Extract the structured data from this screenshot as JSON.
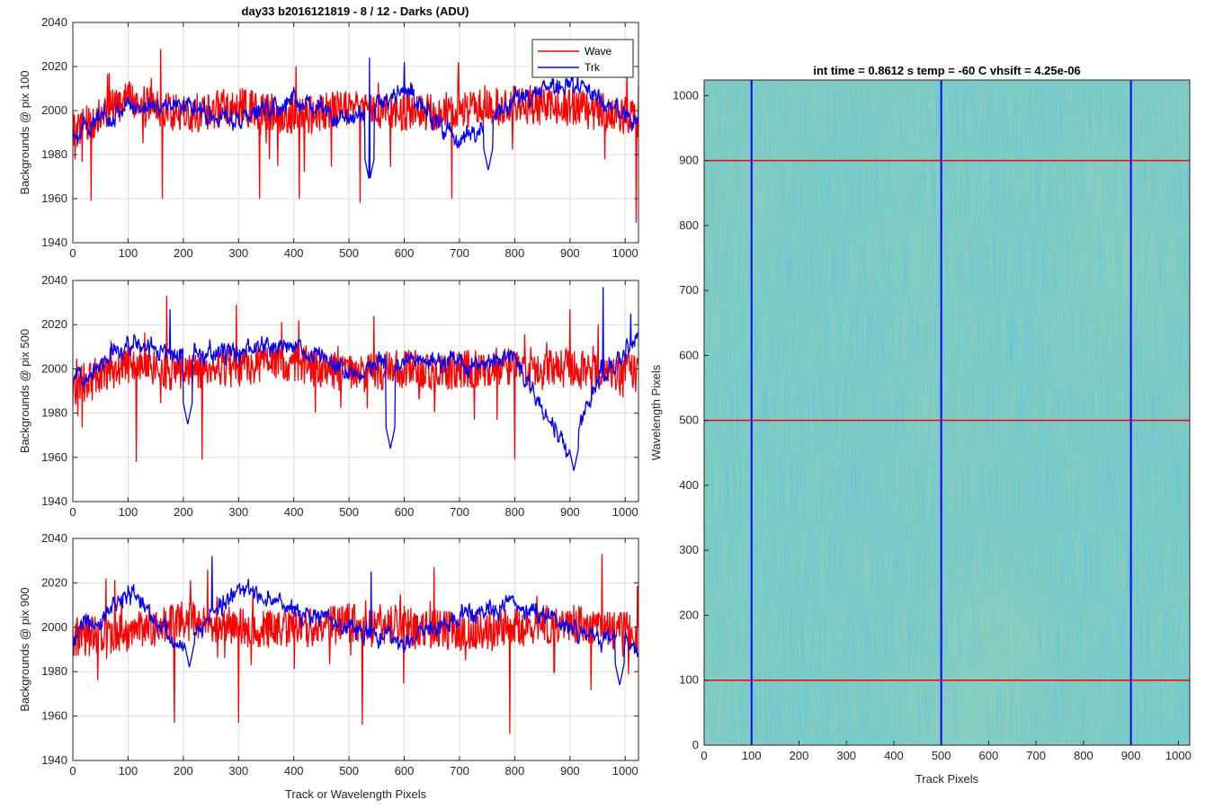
{
  "figure_title": "day33 b2016121819 - 8 / 12 - Darks (ADU)",
  "heatmap_title": "int time = 0.8612 s    temp = -60 C    vhsift = 4.25e-06",
  "colors": {
    "wave": "#ff0000",
    "trk": "#0000ff",
    "grid": "#dcdcdc",
    "axis": "#262626"
  },
  "chart_data": [
    {
      "type": "line",
      "ylabel": "Backgrounds @ pix 100",
      "xlabel": "",
      "xlim": [
        0,
        1024
      ],
      "ylim": [
        1940,
        2040
      ],
      "xticks": [
        "0",
        "100",
        "200",
        "300",
        "400",
        "500",
        "600",
        "700",
        "800",
        "900",
        "1000"
      ],
      "yticks": [
        "1940",
        "1960",
        "1980",
        "2000",
        "2020",
        "2040"
      ],
      "grid": true,
      "legend": {
        "position": "top-right",
        "entries": [
          "Wave",
          "Trk"
        ]
      },
      "series": [
        {
          "name": "Wave",
          "mean": 2000,
          "amp": 9,
          "x_samples": [
            0,
            100,
            200,
            300,
            400,
            500,
            600,
            700,
            800,
            900,
            1024
          ],
          "y_samples": [
            1990,
            2005,
            1998,
            2002,
            1997,
            2001,
            1999,
            2000,
            2003,
            2002,
            1996
          ],
          "min_points": [
            [
              33,
              1959
            ],
            [
              162,
              1960
            ],
            [
              338,
              1960
            ],
            [
              410,
              1960
            ],
            [
              520,
              1958
            ],
            [
              686,
              1960
            ],
            [
              1020,
              1949
            ]
          ],
          "max_points": [
            [
              159,
              2028
            ],
            [
              404,
              2020
            ],
            [
              600,
              2020
            ],
            [
              698,
              2022
            ],
            [
              1003,
              2018
            ]
          ]
        },
        {
          "name": "Trk",
          "mean": 2000,
          "amp": 6,
          "x_samples": [
            0,
            100,
            200,
            300,
            400,
            500,
            600,
            700,
            800,
            900,
            1024
          ],
          "y_samples": [
            1990,
            2002,
            2003,
            1995,
            2005,
            1995,
            2010,
            1985,
            2005,
            2012,
            1995
          ],
          "min_points": [
            [
              537,
              1968
            ],
            [
              752,
              1973
            ]
          ],
          "max_points": [
            [
              537,
              2024
            ],
            [
              600,
              2022
            ],
            [
              914,
              2018
            ]
          ]
        }
      ]
    },
    {
      "type": "line",
      "ylabel": "Backgrounds @ pix 500",
      "xlabel": "",
      "xlim": [
        0,
        1024
      ],
      "ylim": [
        1940,
        2040
      ],
      "xticks": [
        "0",
        "100",
        "200",
        "300",
        "400",
        "500",
        "600",
        "700",
        "800",
        "900",
        "1000"
      ],
      "yticks": [
        "1940",
        "1960",
        "1980",
        "2000",
        "2020",
        "2040"
      ],
      "grid": true,
      "series": [
        {
          "name": "Wave",
          "mean": 2000,
          "amp": 9,
          "x_samples": [
            0,
            100,
            200,
            300,
            400,
            500,
            600,
            700,
            800,
            900,
            1024
          ],
          "y_samples": [
            1992,
            2002,
            1998,
            2001,
            2003,
            1997,
            2000,
            1999,
            2002,
            2000,
            1998
          ],
          "min_points": [
            [
              115,
              1958
            ],
            [
              234,
              1959
            ],
            [
              296,
              1961
            ],
            [
              800,
              1959
            ]
          ],
          "max_points": [
            [
              170,
              2033
            ],
            [
              296,
              2029
            ],
            [
              545,
              2024
            ],
            [
              900,
              2027
            ]
          ]
        },
        {
          "name": "Trk",
          "mean": 2000,
          "amp": 6,
          "x_samples": [
            0,
            100,
            200,
            300,
            400,
            500,
            600,
            700,
            800,
            900,
            950,
            1024
          ],
          "y_samples": [
            1995,
            2012,
            2005,
            2008,
            2010,
            2000,
            2003,
            2002,
            2005,
            1960,
            1995,
            2015
          ],
          "min_points": [
            [
              208,
              1975
            ],
            [
              575,
              1964
            ],
            [
              907,
              1954
            ]
          ],
          "max_points": [
            [
              176,
              2027
            ],
            [
              960,
              2037
            ],
            [
              1010,
              2025
            ]
          ]
        }
      ]
    },
    {
      "type": "line",
      "ylabel": "Backgrounds @ pix 900",
      "xlabel": "Track or Wavelength Pixels",
      "xlim": [
        0,
        1024
      ],
      "ylim": [
        1940,
        2040
      ],
      "xticks": [
        "0",
        "100",
        "200",
        "300",
        "400",
        "500",
        "600",
        "700",
        "800",
        "900",
        "1000"
      ],
      "yticks": [
        "1940",
        "1960",
        "1980",
        "2000",
        "2020",
        "2040"
      ],
      "grid": true,
      "series": [
        {
          "name": "Wave",
          "mean": 2000,
          "amp": 9,
          "x_samples": [
            0,
            100,
            200,
            300,
            400,
            500,
            600,
            700,
            800,
            900,
            1024
          ],
          "y_samples": [
            1995,
            1998,
            2003,
            2000,
            1999,
            2002,
            2001,
            1998,
            2000,
            2002,
            1997
          ],
          "min_points": [
            [
              184,
              1957
            ],
            [
              300,
              1957
            ],
            [
              524,
              1956
            ],
            [
              791,
              1952
            ]
          ],
          "max_points": [
            [
              60,
              2022
            ],
            [
              244,
              2026
            ],
            [
              654,
              2027
            ],
            [
              958,
              2033
            ]
          ]
        },
        {
          "name": "Trk",
          "mean": 2000,
          "amp": 6,
          "x_samples": [
            0,
            100,
            200,
            300,
            400,
            500,
            600,
            700,
            800,
            900,
            1024
          ],
          "y_samples": [
            1995,
            2015,
            1990,
            2018,
            2008,
            2000,
            1993,
            2005,
            2010,
            2000,
            1990
          ],
          "min_points": [
            [
              211,
              1982
            ],
            [
              990,
              1974
            ]
          ],
          "max_points": [
            [
              252,
              2032
            ],
            [
              540,
              2025
            ]
          ]
        }
      ]
    },
    {
      "type": "heatmap",
      "title": "int time = 0.8612 s    temp = -60 C    vhsift = 4.25e-06",
      "xlabel": "Track Pixels",
      "ylabel": "Wavelength Pixels",
      "xlim": [
        0,
        1024
      ],
      "ylim": [
        0,
        1024
      ],
      "xticks": [
        "0",
        "100",
        "200",
        "300",
        "400",
        "500",
        "600",
        "700",
        "800",
        "900",
        "1000"
      ],
      "yticks": [
        "0",
        "100",
        "200",
        "300",
        "400",
        "500",
        "600",
        "700",
        "800",
        "900",
        "1000"
      ],
      "colormap": "parula",
      "vertical_markers": [
        100,
        500,
        900
      ],
      "horizontal_markers": [
        100,
        500,
        900
      ]
    }
  ]
}
